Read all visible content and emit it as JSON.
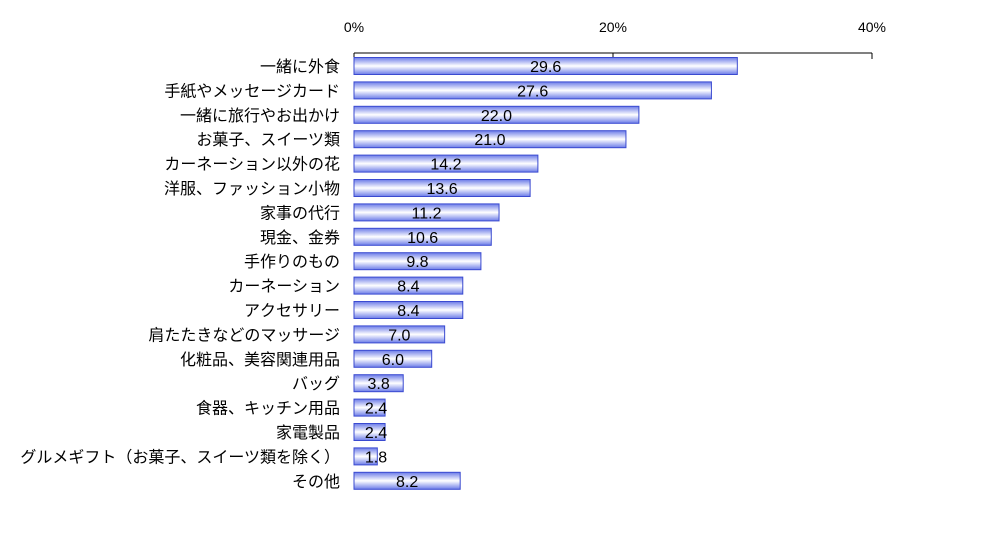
{
  "chart_data": {
    "type": "bar",
    "orientation": "horizontal",
    "title": "",
    "xlabel": "",
    "ylabel": "",
    "xlim": [
      0,
      40
    ],
    "x_ticks": [
      "0%",
      "20%",
      "40%"
    ],
    "x_tick_values": [
      0,
      20,
      40
    ],
    "axis_position": "top",
    "grid": false,
    "bar_color": "#6b7be8",
    "bar_highlight_color": "#ffffff",
    "categories": [
      "一緒に外食",
      "手紙やメッセージカード",
      "一緒に旅行やお出かけ",
      "お菓子、スイーツ類",
      "カーネーション以外の花",
      "洋服、ファッション小物",
      "家事の代行",
      "現金、金券",
      "手作りのもの",
      "カーネーション",
      "アクセサリー",
      "肩たたきなどのマッサージ",
      "化粧品、美容関連用品",
      "バッグ",
      "食器、キッチン用品",
      "家電製品",
      "グルメギフト（お菓子、スイーツ類を除く）",
      "その他"
    ],
    "values": [
      29.6,
      27.6,
      22.0,
      21.0,
      14.2,
      13.6,
      11.2,
      10.6,
      9.8,
      8.4,
      8.4,
      7.0,
      6.0,
      3.8,
      2.4,
      2.4,
      1.8,
      8.2
    ],
    "value_labels": [
      "29.6",
      "27.6",
      "22.0",
      "21.0",
      "14.2",
      "13.6",
      "11.2",
      "10.6",
      "9.8",
      "8.4",
      "8.4",
      "7.0",
      "6.0",
      "3.8",
      "2.4",
      "2.4",
      "1.8",
      "8.2"
    ]
  }
}
